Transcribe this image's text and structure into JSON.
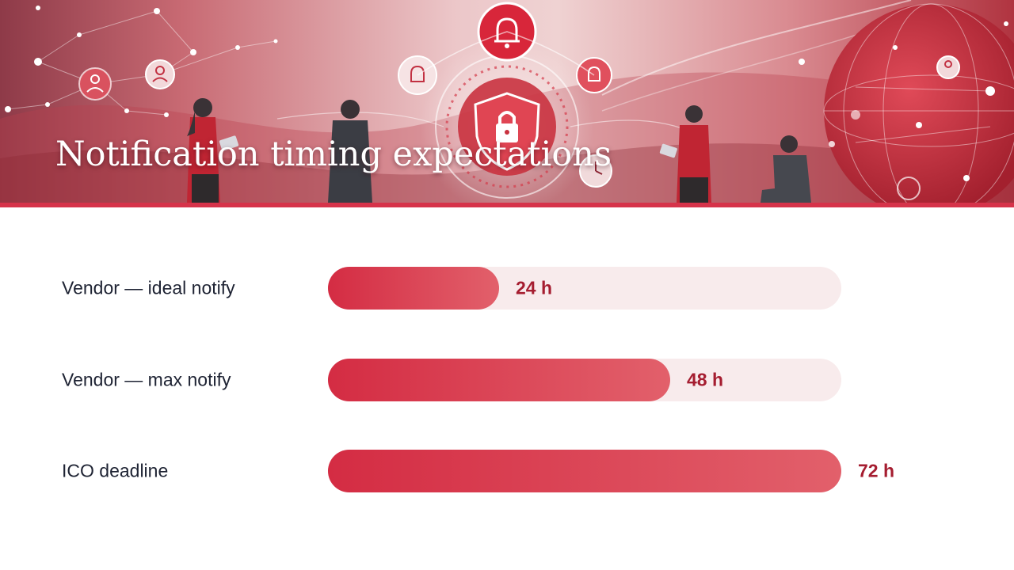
{
  "header": {
    "title": "Notification timing expectations"
  },
  "colors": {
    "accent": "#d6334a",
    "bar_start": "#d42c43",
    "bar_end": "#e2606b",
    "track": "#f8ebec",
    "value_text": "#a51d30",
    "label_text": "#1e2333"
  },
  "chart_data": {
    "type": "bar",
    "orientation": "horizontal",
    "categories": [
      "Vendor — ideal notify",
      "Vendor — max notify",
      "ICO deadline"
    ],
    "values": [
      24,
      48,
      72
    ],
    "value_labels": [
      "24 h",
      "48 h",
      "72 h"
    ],
    "unit": "h",
    "xlim": [
      0,
      72
    ],
    "grid": false
  }
}
